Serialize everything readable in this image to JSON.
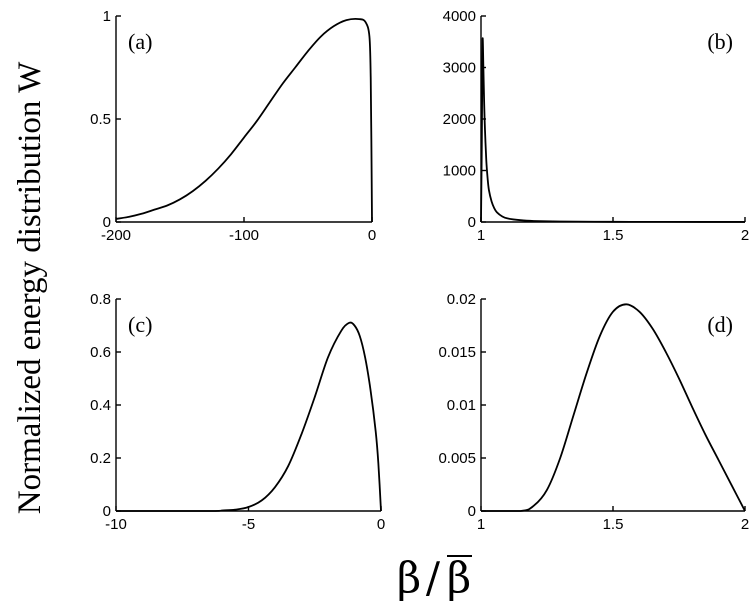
{
  "figure": {
    "ylabel": "Normalized energy distribution W",
    "xlabel_symbol": "β",
    "xlabel_separator": "/",
    "xlabel_denominator": "β"
  },
  "chart_data": [
    {
      "type": "line",
      "panel_label": "(a)",
      "xlim": [
        -200,
        0
      ],
      "ylim": [
        0,
        1
      ],
      "xticks": [
        -200,
        -100,
        0
      ],
      "xtick_labels": [
        "-200",
        "-100",
        "0"
      ],
      "yticks": [
        0,
        0.5,
        1
      ],
      "ytick_labels": [
        "0",
        "0.5",
        "1"
      ],
      "series": [
        {
          "x": [
            -200,
            -190,
            -180,
            -170,
            -160,
            -150,
            -140,
            -130,
            -120,
            -110,
            -100,
            -90,
            -80,
            -70,
            -60,
            -50,
            -40,
            -30,
            -20,
            -10,
            -5,
            -2,
            -1,
            -0.5,
            0
          ],
          "y": [
            0.015,
            0.025,
            0.04,
            0.06,
            0.08,
            0.11,
            0.15,
            0.2,
            0.26,
            0.33,
            0.41,
            0.49,
            0.58,
            0.67,
            0.75,
            0.83,
            0.9,
            0.95,
            0.98,
            0.985,
            0.97,
            0.9,
            0.7,
            0.4,
            0
          ]
        }
      ]
    },
    {
      "type": "line",
      "panel_label": "(b)",
      "xlim": [
        1,
        2
      ],
      "ylim": [
        0,
        4000
      ],
      "xticks": [
        1,
        1.5,
        2
      ],
      "xtick_labels": [
        "1",
        "1.5",
        "2"
      ],
      "yticks": [
        0,
        1000,
        2000,
        3000,
        4000
      ],
      "ytick_labels": [
        "0",
        "1000",
        "2000",
        "3000",
        "4000"
      ],
      "series": [
        {
          "x": [
            1.0,
            1.003,
            1.006,
            1.009,
            1.012,
            1.015,
            1.02,
            1.025,
            1.03,
            1.04,
            1.05,
            1.06,
            1.08,
            1.1,
            1.15,
            1.2,
            1.3,
            1.5,
            1.7,
            2.0
          ],
          "y": [
            0,
            1500,
            3550,
            3000,
            2300,
            1800,
            1200,
            850,
            620,
            400,
            270,
            190,
            110,
            70,
            35,
            20,
            10,
            4,
            2,
            1
          ]
        }
      ]
    },
    {
      "type": "line",
      "panel_label": "(c)",
      "xlim": [
        -10,
        0
      ],
      "ylim": [
        0,
        0.8
      ],
      "xticks": [
        -10,
        -5,
        0
      ],
      "xtick_labels": [
        "-10",
        "-5",
        "0"
      ],
      "yticks": [
        0,
        0.2,
        0.4,
        0.6,
        0.8
      ],
      "ytick_labels": [
        "0",
        "0.2",
        "0.4",
        "0.6",
        "0.8"
      ],
      "series": [
        {
          "x": [
            -10,
            -6.5,
            -6,
            -5.5,
            -5,
            -4.5,
            -4,
            -3.5,
            -3,
            -2.5,
            -2,
            -1.5,
            -1.2,
            -1,
            -0.8,
            -0.6,
            -0.4,
            -0.2,
            -0.1,
            0
          ],
          "y": [
            0,
            0,
            0.002,
            0.005,
            0.015,
            0.04,
            0.09,
            0.17,
            0.29,
            0.43,
            0.58,
            0.68,
            0.71,
            0.7,
            0.66,
            0.58,
            0.46,
            0.3,
            0.18,
            0
          ]
        }
      ]
    },
    {
      "type": "line",
      "panel_label": "(d)",
      "xlim": [
        1,
        2
      ],
      "ylim": [
        0,
        0.02
      ],
      "xticks": [
        1,
        1.5,
        2
      ],
      "xtick_labels": [
        "1",
        "1.5",
        "2"
      ],
      "yticks": [
        0,
        0.005,
        0.01,
        0.015,
        0.02
      ],
      "ytick_labels": [
        "0",
        "0.005",
        "0.01",
        "0.015",
        "0.02"
      ],
      "series": [
        {
          "x": [
            1.0,
            1.15,
            1.2,
            1.25,
            1.3,
            1.35,
            1.4,
            1.45,
            1.5,
            1.55,
            1.6,
            1.65,
            1.7,
            1.75,
            1.8,
            1.85,
            1.9,
            1.95,
            2.0
          ],
          "y": [
            0,
            0,
            0.0005,
            0.002,
            0.005,
            0.009,
            0.013,
            0.0165,
            0.0188,
            0.0195,
            0.0188,
            0.0172,
            0.015,
            0.0125,
            0.0098,
            0.0072,
            0.0048,
            0.0024,
            0
          ]
        }
      ]
    }
  ]
}
